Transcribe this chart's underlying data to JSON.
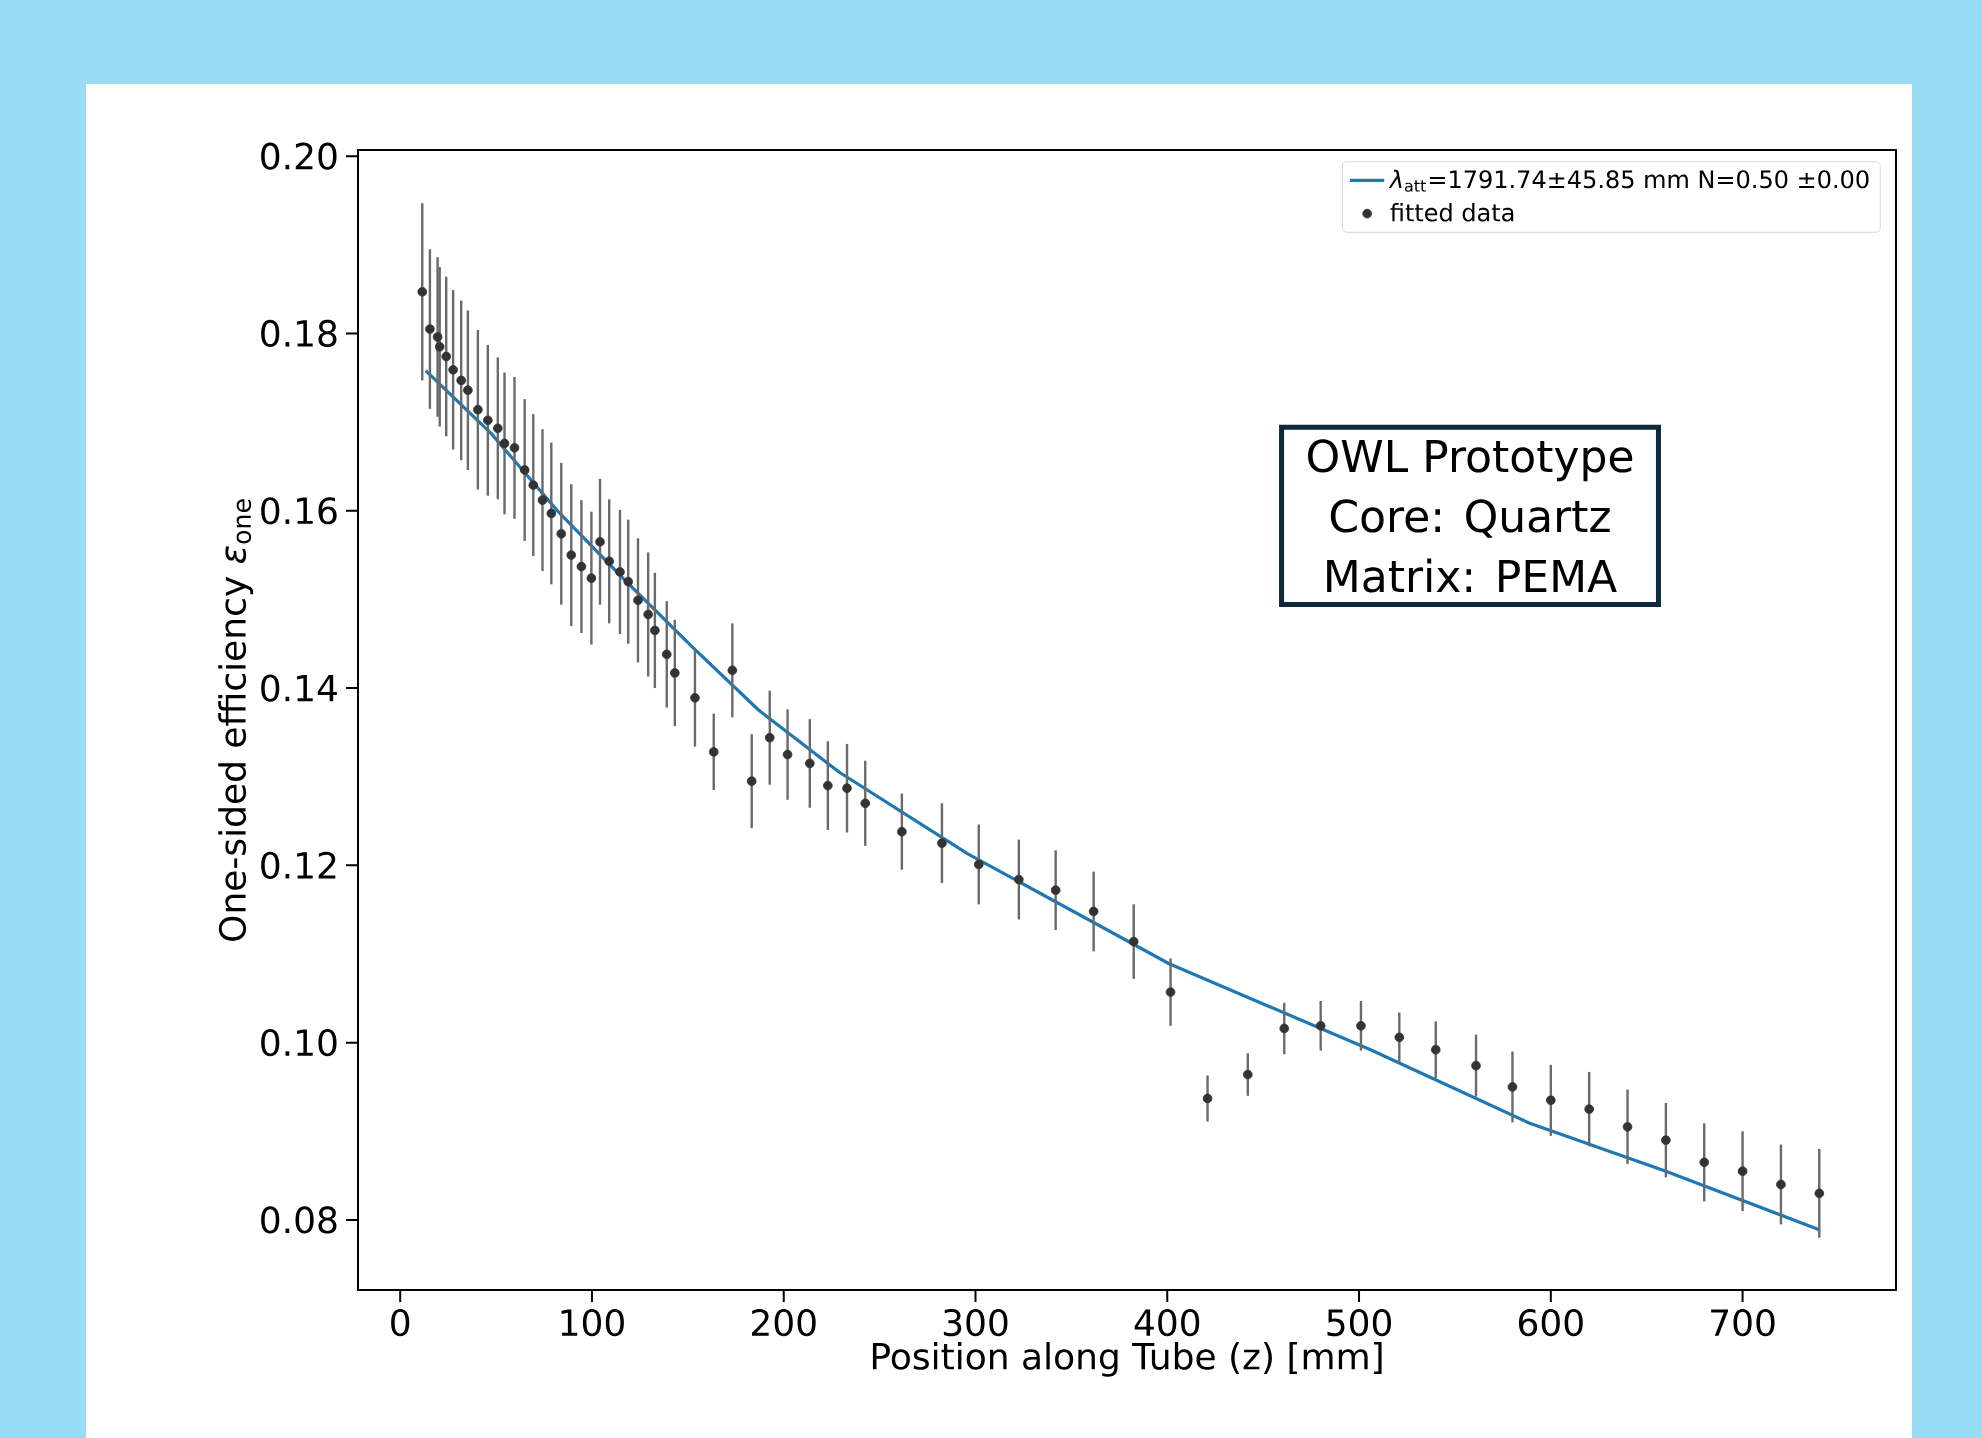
{
  "chart_data": {
    "type": "scatter",
    "xlabel": "Position along Tube (z) [mm]",
    "ylabel": "One-sided efficiency *ε*$_{one}$",
    "xlim": [
      -22,
      780
    ],
    "ylim": [
      0.0721,
      0.2007
    ],
    "xticks": [
      0,
      100,
      200,
      300,
      400,
      500,
      600,
      700
    ],
    "yticks": [
      0.08,
      {
        "value": 0.1,
        "label": "0.10"
      },
      0.12,
      0.14,
      0.16,
      0.18,
      {
        "value": 0.2,
        "label": "0.20"
      }
    ],
    "legend": "top right",
    "annotations": [
      "OWL Prototype",
      "Core: Quartz",
      "Matrix: PEMA"
    ],
    "series": [
      {
        "type": "line",
        "name": "*λ*$_{att}$=1791.74±45.85 mm N=0.50 ±0.00",
        "color": "#1f77b4",
        "line_style": "solid",
        "marker": "none",
        "x": [
          13.3,
          47.5,
          82,
          117,
          152,
          187,
          229,
          296,
          401,
          506,
          589,
          660,
          740
        ],
        "values": [
          0.1758,
          0.1687,
          0.16,
          0.1522,
          0.1447,
          0.1375,
          0.1305,
          0.1213,
          0.1089,
          0.0992,
          0.0909,
          0.0855,
          0.0789
        ]
      },
      {
        "name": "fitted data",
        "color": "#333333",
        "marker": "circle",
        "x": [
          11.5,
          15.5,
          19.5,
          20.6,
          24,
          27.6,
          31.8,
          35.3,
          40.5,
          45.7,
          50.9,
          54.4,
          59.6,
          64.9,
          69.4,
          74.2,
          78.8,
          84,
          89.2,
          94.5,
          99.7,
          104.2,
          109,
          114.6,
          118.9,
          124,
          129.3,
          132.8,
          139,
          143.2,
          153.7,
          163.5,
          173.2,
          183.3,
          192.7,
          202,
          213.6,
          223,
          233,
          242.5,
          261.6,
          282.5,
          301.7,
          322.6,
          341.8,
          361.6,
          382.5,
          401.7,
          421,
          442,
          461,
          480,
          501,
          521,
          540,
          561,
          580,
          600,
          620,
          640,
          660,
          680,
          700,
          720,
          740
        ],
        "values": [
          0.1847,
          0.1805,
          0.1796,
          0.1785,
          0.1774,
          0.1759,
          0.1747,
          0.1736,
          0.1714,
          0.1702,
          0.1693,
          0.1676,
          0.1671,
          0.1646,
          0.1629,
          0.1612,
          0.1597,
          0.1574,
          0.155,
          0.1537,
          0.1524,
          0.1565,
          0.1543,
          0.1531,
          0.152,
          0.1499,
          0.1483,
          0.1465,
          0.1438,
          0.1417,
          0.1389,
          0.1328,
          0.142,
          0.1295,
          0.1344,
          0.1325,
          0.1315,
          0.129,
          0.1287,
          0.127,
          0.1238,
          0.1225,
          0.1201,
          0.1184,
          0.1172,
          0.1148,
          0.1114,
          0.1057,
          0.0937,
          0.0964,
          0.1016,
          0.1019,
          0.1019,
          0.1006,
          0.0992,
          0.0974,
          0.095,
          0.0935,
          0.0925,
          0.0905,
          0.089,
          0.0865,
          0.0855,
          0.084,
          0.083
        ],
        "errors": [
          0.01,
          0.009,
          0.009,
          0.009,
          0.009,
          0.009,
          0.009,
          0.009,
          0.009,
          0.0085,
          0.008,
          0.008,
          0.008,
          0.008,
          0.008,
          0.008,
          0.008,
          0.008,
          0.008,
          0.0075,
          0.0075,
          0.0071,
          0.007,
          0.007,
          0.007,
          0.007,
          0.007,
          0.0065,
          0.006,
          0.006,
          0.0055,
          0.0043,
          0.0053,
          0.0053,
          0.0053,
          0.0051,
          0.005,
          0.005,
          0.005,
          0.0048,
          0.0043,
          0.0045,
          0.0045,
          0.0045,
          0.0045,
          0.0045,
          0.0042,
          0.0038,
          0.0026,
          0.0024,
          0.0029,
          0.0028,
          0.0028,
          0.0028,
          0.0032,
          0.0035,
          0.004,
          0.004,
          0.0042,
          0.0042,
          0.0042,
          0.0044,
          0.0045,
          0.0045,
          0.005
        ]
      }
    ]
  }
}
